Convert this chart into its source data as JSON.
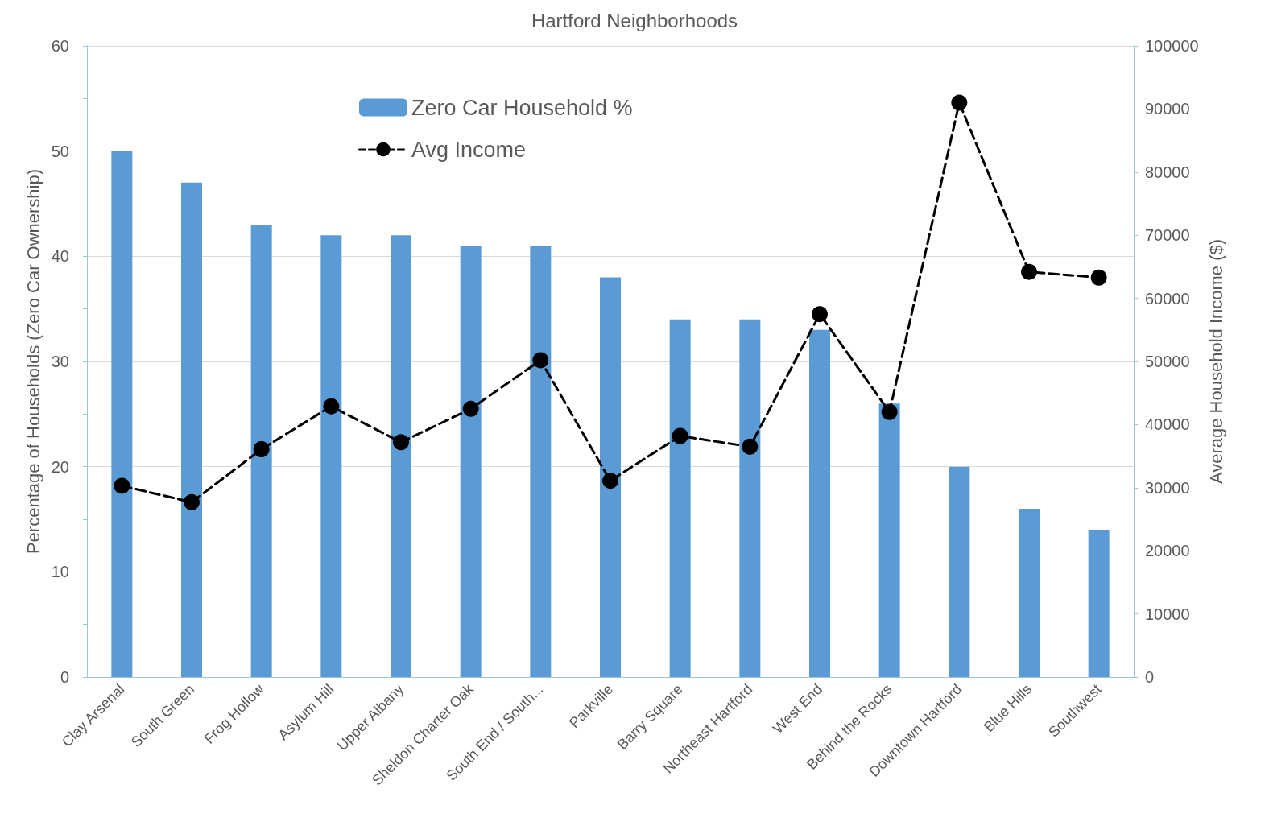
{
  "chart_data": {
    "type": "bar",
    "title": "Hartford Neighborhoods",
    "categories": [
      "Clay Arsenal",
      "South Green",
      "Frog Hollow",
      "Asylum Hill",
      "Upper Albany",
      "Sheldon Charter Oak",
      "South End / South...",
      "Parkville",
      "Barry Square",
      "Northeast Hartford",
      "West End",
      "Behind the Rocks",
      "Downtown Hartford",
      "Blue Hills",
      "Southwest"
    ],
    "series": [
      {
        "name": "Zero Car Household %",
        "color": "#5b9bd5",
        "values": [
          50,
          47,
          43,
          42,
          42,
          41,
          41,
          38,
          34,
          34,
          33,
          26,
          20,
          16,
          14
        ]
      },
      {
        "name": "Avg Income",
        "type": "line",
        "axis": "y2",
        "color": "#000000",
        "marker": "circle",
        "line_style": "dashed",
        "values": [
          30300,
          27700,
          36100,
          42900,
          37200,
          42500,
          50200,
          31100,
          38200,
          36500,
          57500,
          42000,
          91000,
          64200,
          63300
        ]
      }
    ],
    "ylabel": "Percentage of Households (Zero Car Ownership)",
    "y2label": "Average Household Income ($)",
    "ylim": [
      0,
      60
    ],
    "yticks": [
      0,
      10,
      20,
      30,
      40,
      50,
      60
    ],
    "y2lim": [
      0,
      100000
    ],
    "y2ticks": [
      0,
      10000,
      20000,
      30000,
      40000,
      50000,
      60000,
      70000,
      80000,
      90000,
      100000
    ],
    "grid": "y",
    "legend": "top"
  }
}
